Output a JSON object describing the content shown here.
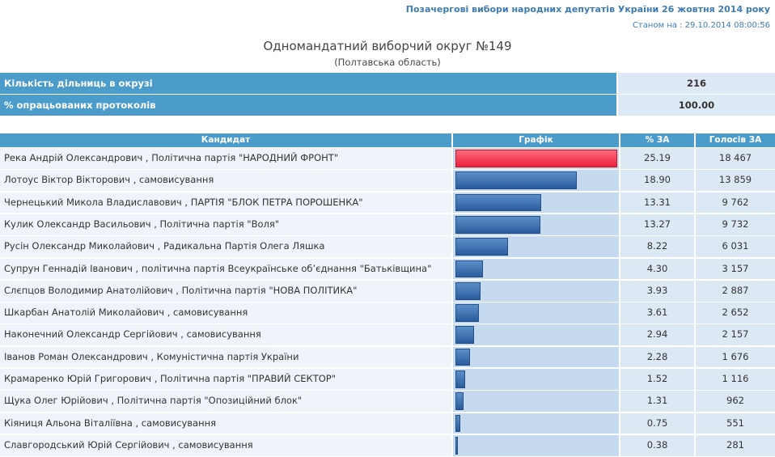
{
  "header": {
    "election": "Позачергові вибори народних депутатів України 26 жовтня 2014 року",
    "timestamp": "Станом на : 29.10.2014 08:00:56",
    "title": "Одномандатний виборчий округ №149",
    "subtitle": "(Полтавська область)"
  },
  "summary": [
    {
      "label": "Кількість дільниць в окрузі",
      "value": 216
    },
    {
      "label": "% опрацьованих протоколів",
      "value": {
        "value": 100,
        "label": "100.00"
      }
    }
  ],
  "table": {
    "columns": [
      "Кандидат",
      "Графік",
      "% ЗА",
      "Голосів ЗА"
    ],
    "rows": [
      {
        "candidate": "Река Андрій Олександрович , Політична партія \"НАРОДНИЙ ФРОНТ\"",
        "percent": 25.19,
        "votes": {
          "value": 18467,
          "label": "18 467"
        }
      },
      {
        "candidate": "Лотоус Віктор Вікторович , самовисування",
        "percent": {
          "value": 18.9,
          "label": "18.90"
        },
        "votes": {
          "value": 13859,
          "label": "13 859"
        }
      },
      {
        "candidate": "Чернецький Микола Владиславович , ПАРТІЯ \"БЛОК ПЕТРА ПОРОШЕНКА\"",
        "percent": 13.31,
        "votes": {
          "value": 9762,
          "label": "9 762"
        }
      },
      {
        "candidate": "Кулик Олександр Васильович , Політична партія \"Воля\"",
        "percent": 13.27,
        "votes": {
          "value": 9732,
          "label": "9 732"
        }
      },
      {
        "candidate": "Русін Олександр Миколайович , Радикальна Партія Олега Ляшка",
        "percent": 8.22,
        "votes": {
          "value": 6031,
          "label": "6 031"
        }
      },
      {
        "candidate": "Супрун Геннадій Іванович , політична партія Всеукраїнське об’єднання \"Батьківщина\"",
        "percent": {
          "value": 4.3,
          "label": "4.30"
        },
        "votes": {
          "value": 3157,
          "label": "3 157"
        }
      },
      {
        "candidate": "Слєпцов Володимир Анатолійович , Політична партія \"НОВА ПОЛІТИКА\"",
        "percent": 3.93,
        "votes": {
          "value": 2887,
          "label": "2 887"
        }
      },
      {
        "candidate": "Шкарбан Анатолій Миколайович , самовисування",
        "percent": 3.61,
        "votes": {
          "value": 2652,
          "label": "2 652"
        }
      },
      {
        "candidate": "Наконечний Олександр Сергійович , самовисування",
        "percent": 2.94,
        "votes": {
          "value": 2157,
          "label": "2 157"
        }
      },
      {
        "candidate": "Іванов Роман Олександрович , Комуністична партія України",
        "percent": 2.28,
        "votes": {
          "value": 1676,
          "label": "1 676"
        }
      },
      {
        "candidate": "Крамаренко Юрій Григорович , Політична партія \"ПРАВИЙ СЕКТОР\"",
        "percent": 1.52,
        "votes": {
          "value": 1116,
          "label": "1 116"
        }
      },
      {
        "candidate": "Щука Олег Юрійович , Політична партія \"Опозиційний блок\"",
        "percent": 1.31,
        "votes": 962
      },
      {
        "candidate": "Кіяниця Альона Віталіївна , самовисування",
        "percent": 0.75,
        "votes": 551
      },
      {
        "candidate": "Славгородський Юрій Сергійович , самовисування",
        "percent": 0.38,
        "votes": 281
      }
    ]
  }
}
